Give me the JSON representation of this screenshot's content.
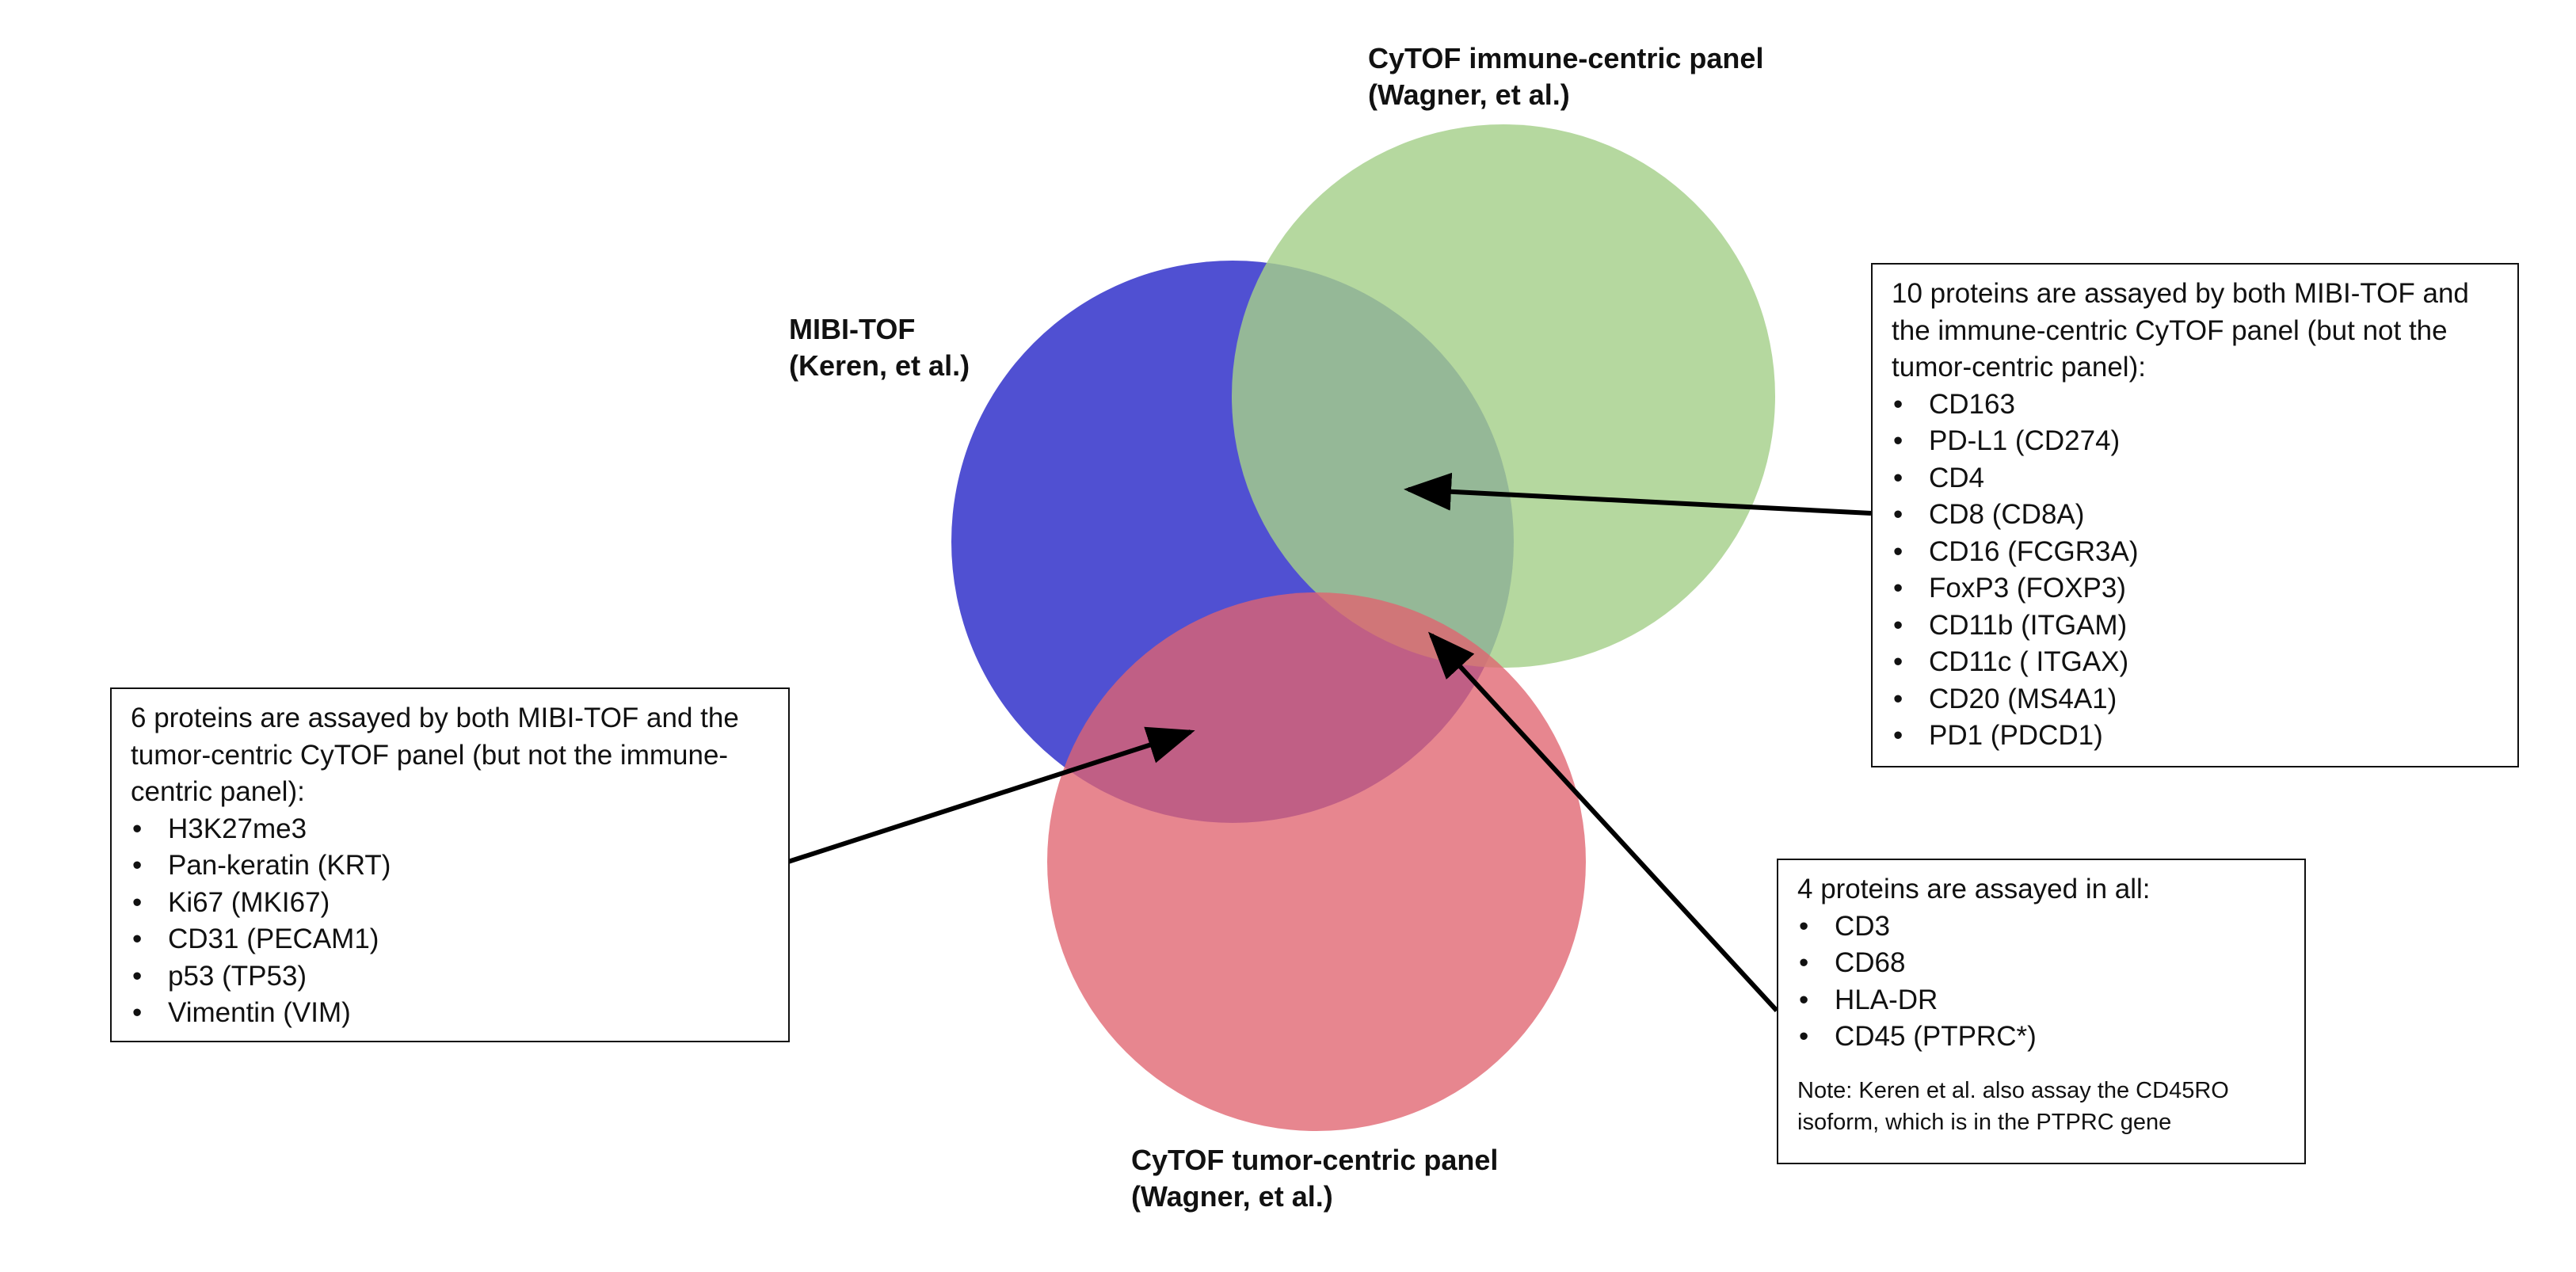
{
  "sets": {
    "mibi": {
      "line1": "MIBI-TOF",
      "line2": "(Keren, et al.)",
      "color": "#2a2ac8"
    },
    "immune": {
      "line1": "CyTOF immune-centric panel",
      "line2": "(Wagner, et al.)",
      "color": "#a5cf8a"
    },
    "tumor": {
      "line1": "CyTOF tumor-centric panel",
      "line2": "(Wagner, et al.)",
      "color": "#e06470"
    }
  },
  "boxes": {
    "mibi_tumor": {
      "heading": "6 proteins are assayed by both MIBI-TOF and the tumor-centric CyTOF panel (but not the immune-centric panel):",
      "items": [
        "H3K27me3",
        "Pan-keratin (KRT)",
        "Ki67 (MKI67)",
        "CD31 (PECAM1)",
        "p53 (TP53)",
        "Vimentin (VIM)"
      ]
    },
    "mibi_immune": {
      "heading": "10 proteins are assayed by both MIBI-TOF and the immune-centric CyTOF panel (but not the tumor-centric panel):",
      "items": [
        "CD163",
        "PD-L1 (CD274)",
        "CD4",
        "CD8 (CD8A)",
        "CD16 (FCGR3A)",
        "FoxP3 (FOXP3)",
        "CD11b (ITGAM)",
        "CD11c ( ITGAX)",
        "CD20 (MS4A1)",
        "PD1 (PDCD1)"
      ]
    },
    "all": {
      "heading": "4 proteins are assayed in all:",
      "items": [
        "CD3",
        "CD68",
        "HLA-DR",
        "CD45 (PTPRC*)"
      ],
      "note": "Note: Keren et al. also assay the CD45RO isoform, which is in the PTPRC gene"
    }
  }
}
